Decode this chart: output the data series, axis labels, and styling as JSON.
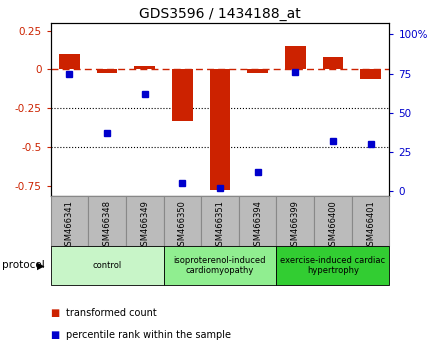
{
  "title": "GDS3596 / 1434188_at",
  "samples": [
    "GSM466341",
    "GSM466348",
    "GSM466349",
    "GSM466350",
    "GSM466351",
    "GSM466394",
    "GSM466399",
    "GSM466400",
    "GSM466401"
  ],
  "red_bars": [
    0.1,
    -0.02,
    0.02,
    -0.33,
    -0.78,
    -0.02,
    0.15,
    0.08,
    -0.06
  ],
  "blue_dots": [
    75,
    37,
    62,
    5,
    2,
    12,
    76,
    32,
    30
  ],
  "ylim_left": [
    -0.82,
    0.3
  ],
  "ylim_right": [
    -3.28,
    107.2
  ],
  "yticks_left": [
    0.25,
    0.0,
    -0.25,
    -0.5,
    -0.75
  ],
  "yticks_right": [
    100,
    75,
    50,
    25,
    0
  ],
  "dotted_lines": [
    -0.25,
    -0.5
  ],
  "groups": [
    {
      "label": "control",
      "start": 0,
      "end": 3,
      "color": "#c8f5c8"
    },
    {
      "label": "isoproterenol-induced\ncardiomyopathy",
      "start": 3,
      "end": 6,
      "color": "#90ee90"
    },
    {
      "label": "exercise-induced cardiac\nhypertrophy",
      "start": 6,
      "end": 9,
      "color": "#32cd32"
    }
  ],
  "protocol_label": "protocol",
  "legend_red": "transformed count",
  "legend_blue": "percentile rank within the sample",
  "bar_color": "#cc2200",
  "dot_color": "#0000cc",
  "hline_color": "#cc2200",
  "background_color": "#ffffff",
  "tick_label_bg": "#bbbbbb",
  "tick_label_border": "#888888"
}
